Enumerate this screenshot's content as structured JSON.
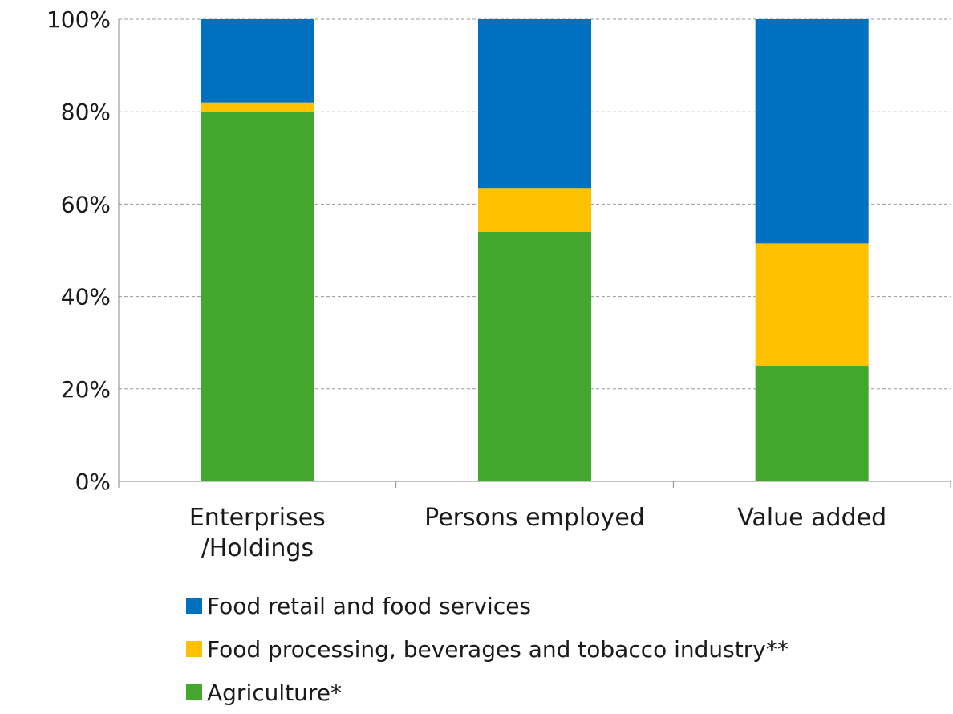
{
  "chart_data": {
    "type": "bar",
    "stacked": true,
    "categories": [
      "Enterprises\n/Holdings",
      "Persons employed",
      "Value added"
    ],
    "series": [
      {
        "name": "Agriculture*",
        "color": "#43A62D",
        "values": [
          80,
          54,
          25
        ]
      },
      {
        "name": "Food processing, beverages and tobacco industry**",
        "color": "#FFC000",
        "values": [
          2,
          9.5,
          26.5
        ]
      },
      {
        "name": "Food retail and food services",
        "color": "#0070C0",
        "values": [
          18,
          36.5,
          48.5
        ]
      }
    ],
    "yticks": [
      "0%",
      "20%",
      "40%",
      "60%",
      "80%",
      "100%"
    ],
    "ylim": [
      0,
      100
    ],
    "grid": true,
    "legend_position": "bottom",
    "legend_order": [
      2,
      1,
      0
    ]
  }
}
